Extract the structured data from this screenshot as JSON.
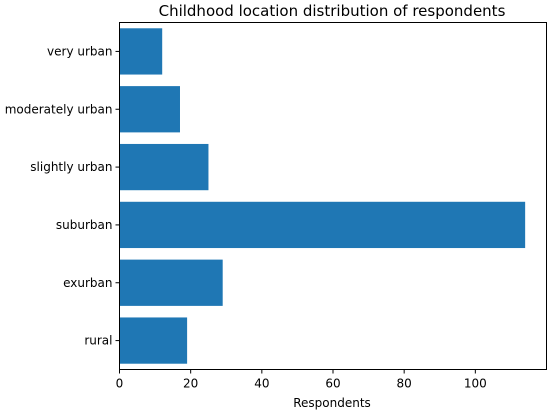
{
  "chart_data": {
    "type": "bar",
    "orientation": "horizontal",
    "title": "Childhood location distribution of respondents",
    "xlabel": "Respondents",
    "ylabel": "",
    "categories": [
      "rural",
      "exurban",
      "suburban",
      "slightly urban",
      "moderately urban",
      "very urban"
    ],
    "values": [
      19,
      29,
      114,
      25,
      17,
      12
    ],
    "xlim": [
      0,
      120
    ],
    "xticks": [
      0,
      20,
      40,
      60,
      80,
      100
    ],
    "grid": false,
    "bar_color": "#1f77b4"
  }
}
